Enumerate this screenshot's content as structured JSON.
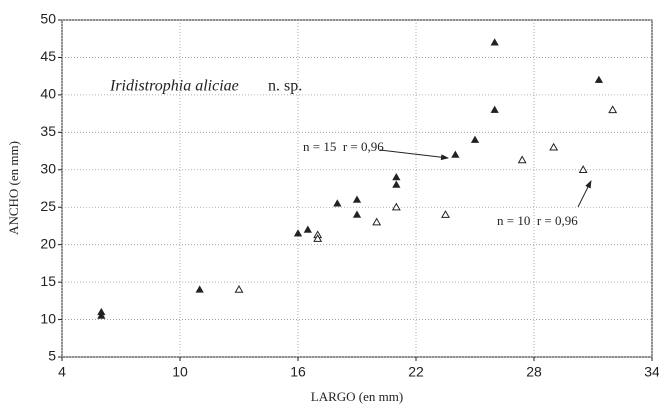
{
  "chart_data": {
    "type": "scatter",
    "title": "Iridistrophia aliciae",
    "title_suffix": "n. sp.",
    "x_label": "LARGO (en mm)",
    "y_label": "ANCHO (en mm)",
    "annotations": [
      "n = 15  r = 0,96",
      "n = 10  r = 0,96"
    ],
    "xlim": [
      4,
      34
    ],
    "xticks": [
      4,
      10,
      16,
      22,
      28,
      34
    ],
    "ylim": [
      5,
      50
    ],
    "yticks": [
      5,
      10,
      15,
      20,
      25,
      30,
      35,
      40,
      45,
      50
    ],
    "grid": true,
    "series": [
      {
        "marker": "filled",
        "color": "#222",
        "x": [
          6,
          6,
          11,
          16,
          16.5,
          18,
          19,
          19,
          21,
          21,
          24,
          25,
          26,
          26,
          31.3
        ],
        "values": [
          11,
          10.5,
          14,
          21.5,
          22,
          25.5,
          26,
          24,
          29,
          28,
          32,
          34,
          38,
          47,
          42
        ]
      },
      {
        "marker": "open",
        "color": "#222",
        "x": [
          13,
          17,
          17,
          20,
          21,
          23.5,
          27.4,
          29,
          30.5,
          32
        ],
        "values": [
          14,
          21.3,
          20.8,
          23,
          25,
          24,
          31.3,
          33,
          30,
          38
        ]
      }
    ]
  }
}
